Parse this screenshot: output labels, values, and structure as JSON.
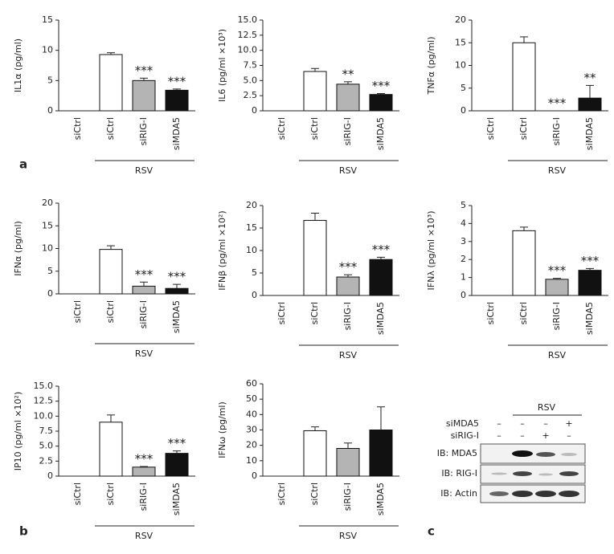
{
  "chart_data": [
    {
      "type": "bar",
      "ylabel": "IL1α (pg/ml)",
      "categories": [
        "siCtrl",
        "siCtrl",
        "siRIG-I",
        "siMDA5"
      ],
      "values": [
        0,
        9.3,
        5.0,
        3.4
      ],
      "errors": [
        0,
        0.3,
        0.4,
        0.2
      ],
      "colors": [
        "#ffffff",
        "#ffffff",
        "#b4b4b4",
        "#111111"
      ],
      "annotations": [
        null,
        null,
        "***",
        "***"
      ],
      "group_label": "RSV",
      "ylim": [
        0,
        15
      ],
      "yticks": [
        0,
        5,
        10,
        15
      ]
    },
    {
      "type": "bar",
      "ylabel": "IL6 (pg/ml ×10³)",
      "categories": [
        "siCtrl",
        "siCtrl",
        "siRIG-I",
        "siMDA5"
      ],
      "values": [
        0,
        6.5,
        4.4,
        2.7
      ],
      "errors": [
        0,
        0.5,
        0.4,
        0.15
      ],
      "colors": [
        "#ffffff",
        "#ffffff",
        "#b4b4b4",
        "#111111"
      ],
      "annotations": [
        null,
        null,
        "**",
        "***"
      ],
      "group_label": "RSV",
      "ylim": [
        0,
        15
      ],
      "yticks": [
        0,
        2.5,
        {
          "value": 5,
          "label": "5.0"
        },
        7.5,
        {
          "value": 10,
          "label": "10.0"
        },
        12.5,
        {
          "value": 15,
          "label": "15.0"
        }
      ]
    },
    {
      "type": "bar",
      "ylabel": "TNFα (pg/ml)",
      "categories": [
        "siCtrl",
        "siCtrl",
        "siRIG-I",
        "siMDA5"
      ],
      "values": [
        0,
        15,
        0,
        2.8
      ],
      "errors": [
        0,
        1.3,
        0,
        2.8
      ],
      "colors": [
        "#ffffff",
        "#ffffff",
        "#b4b4b4",
        "#111111"
      ],
      "annotations": [
        null,
        null,
        "***",
        "**"
      ],
      "group_label": "RSV",
      "ylim": [
        0,
        20
      ],
      "yticks": [
        0,
        5,
        10,
        15,
        20
      ]
    },
    {
      "type": "bar",
      "ylabel": "IFNα (pg/ml)",
      "categories": [
        "siCtrl",
        "siCtrl",
        "siRIG-I",
        "siMDA5"
      ],
      "values": [
        0,
        9.8,
        1.7,
        1.2
      ],
      "errors": [
        0,
        0.8,
        0.9,
        0.9
      ],
      "colors": [
        "#ffffff",
        "#ffffff",
        "#b4b4b4",
        "#111111"
      ],
      "annotations": [
        null,
        null,
        "***",
        "***"
      ],
      "group_label": "RSV",
      "ylim": [
        0,
        20
      ],
      "yticks": [
        0,
        5,
        10,
        15,
        20
      ]
    },
    {
      "type": "bar",
      "ylabel": "IFNβ (pg/ml ×10²)",
      "categories": [
        "siCtrl",
        "siCtrl",
        "siRIG-I",
        "siMDA5"
      ],
      "values": [
        0,
        16.7,
        4.1,
        8.0
      ],
      "errors": [
        0,
        1.6,
        0.5,
        0.5
      ],
      "colors": [
        "#ffffff",
        "#ffffff",
        "#b4b4b4",
        "#111111"
      ],
      "annotations": [
        null,
        null,
        "***",
        "***"
      ],
      "group_label": "RSV",
      "ylim": [
        0,
        20
      ],
      "yticks": [
        0,
        5,
        10,
        15,
        20
      ]
    },
    {
      "type": "bar",
      "ylabel": "IFNλ (pg/ml ×10³)",
      "categories": [
        "siCtrl",
        "siCtrl",
        "siRIG-I",
        "siMDA5"
      ],
      "values": [
        0,
        3.6,
        0.9,
        1.4
      ],
      "errors": [
        0,
        0.2,
        0.05,
        0.1
      ],
      "colors": [
        "#ffffff",
        "#ffffff",
        "#b4b4b4",
        "#111111"
      ],
      "annotations": [
        null,
        null,
        "***",
        "***"
      ],
      "group_label": "RSV",
      "ylim": [
        0,
        5
      ],
      "yticks": [
        0,
        1,
        2,
        3,
        4,
        5
      ]
    },
    {
      "type": "bar",
      "ylabel": "IP10 (pg/ml ×10²)",
      "categories": [
        "siCtrl",
        "siCtrl",
        "siRIG-I",
        "siMDA5"
      ],
      "values": [
        0,
        9.0,
        1.5,
        3.8
      ],
      "errors": [
        0,
        1.2,
        0.1,
        0.4
      ],
      "colors": [
        "#ffffff",
        "#ffffff",
        "#b4b4b4",
        "#111111"
      ],
      "annotations": [
        null,
        null,
        "***",
        "***"
      ],
      "group_label": "RSV",
      "ylim": [
        0,
        15
      ],
      "yticks": [
        0,
        2.5,
        {
          "value": 5,
          "label": "5.0"
        },
        7.5,
        {
          "value": 10,
          "label": "10.0"
        },
        12.5,
        {
          "value": 15,
          "label": "15.0"
        }
      ]
    },
    {
      "type": "bar",
      "ylabel": "IFNω (pg/ml)",
      "categories": [
        "siCtrl",
        "siCtrl",
        "siRIG-I",
        "siMDA5"
      ],
      "values": [
        0,
        29.5,
        18,
        30
      ],
      "errors": [
        0,
        2.5,
        3.5,
        15
      ],
      "colors": [
        "#ffffff",
        "#ffffff",
        "#b4b4b4",
        "#111111"
      ],
      "annotations": [
        null,
        null,
        null,
        null
      ],
      "group_label": "RSV",
      "ylim": [
        0,
        60
      ],
      "yticks": [
        0,
        10,
        20,
        30,
        40,
        50,
        60
      ]
    }
  ],
  "panel_labels": [
    "a",
    "b",
    "c"
  ],
  "blot": {
    "group_label": "RSV",
    "conditions": [
      {
        "name": "siMDA5",
        "marks": [
          "–",
          "–",
          "–",
          "+"
        ]
      },
      {
        "name": "siRIG-I",
        "marks": [
          "–",
          "–",
          "+",
          "–"
        ]
      }
    ],
    "rows": [
      "IB: MDA5",
      "IB: RIG-I",
      "IB: Actin"
    ]
  }
}
